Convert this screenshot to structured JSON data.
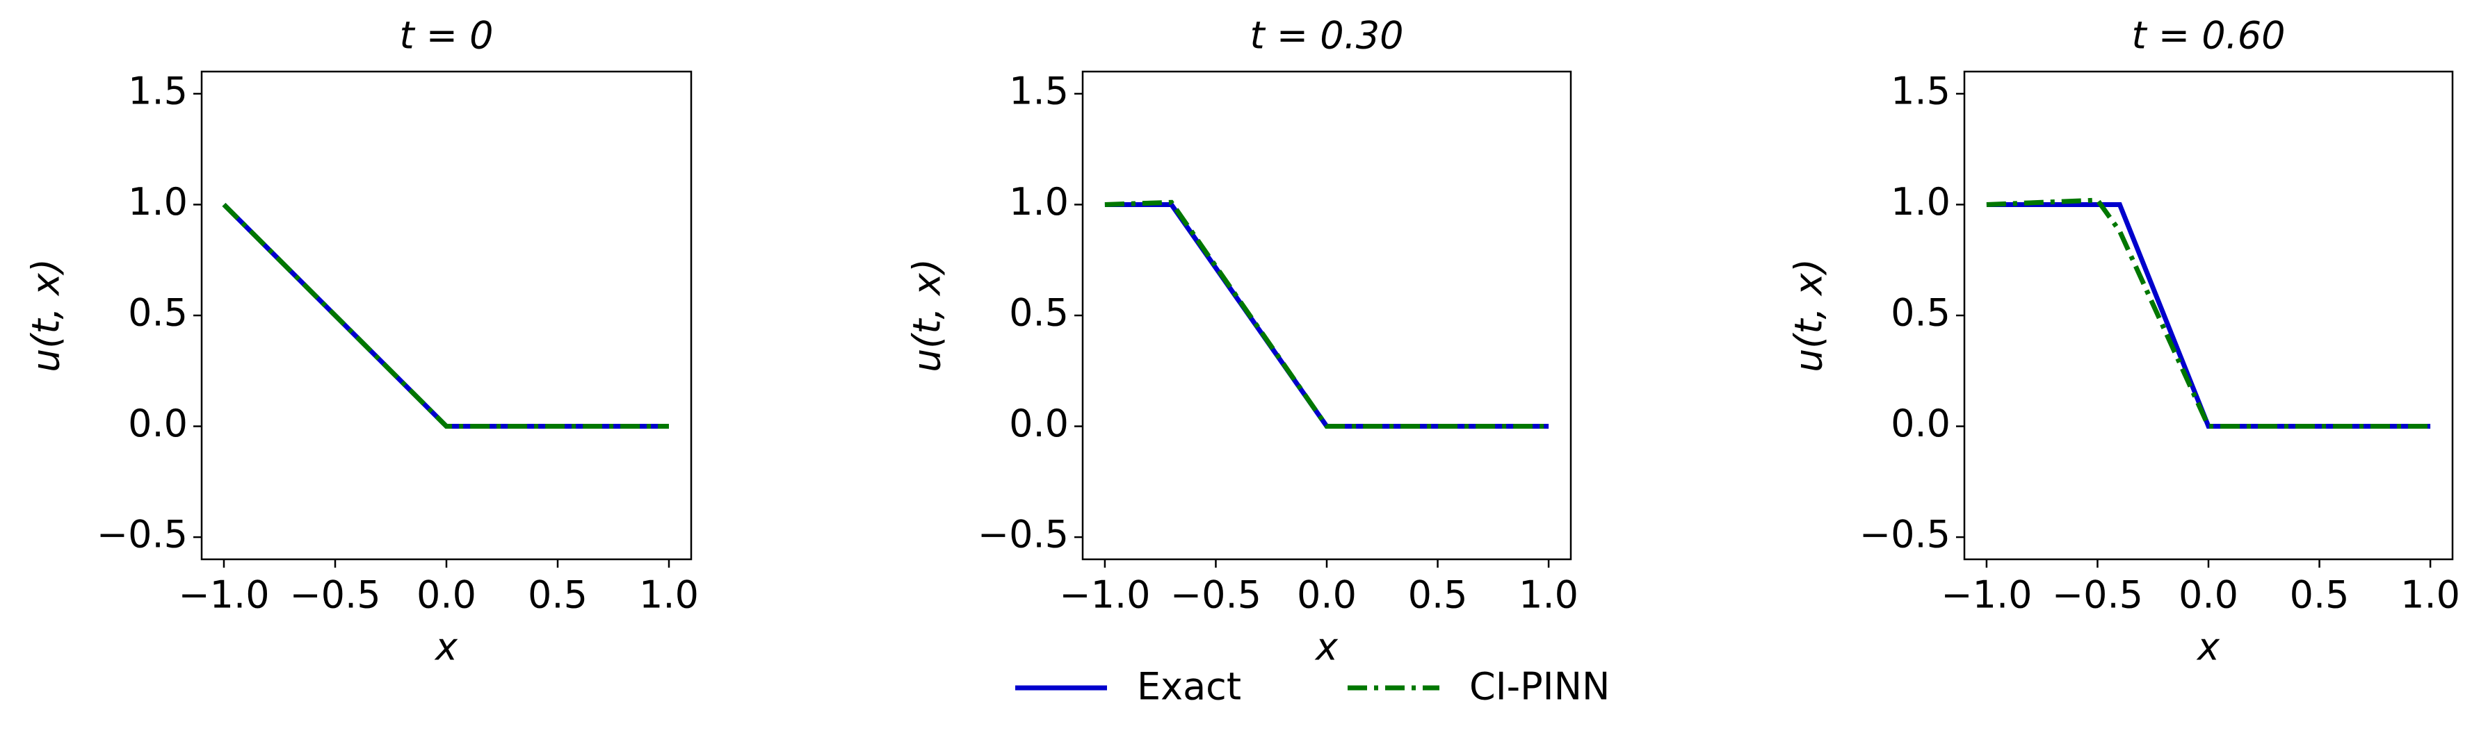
{
  "chart_data": [
    {
      "type": "line",
      "title": "t = 0",
      "xlabel": "x",
      "ylabel": "u(t, x)",
      "x": [
        -1,
        0,
        1
      ],
      "series": [
        {
          "name": "Exact",
          "color": "#0000cc",
          "linestyle": "solid",
          "values": [
            1,
            0,
            0
          ]
        },
        {
          "name": "CI-PINN",
          "color": "#007700",
          "linestyle": "dashdot",
          "values": [
            1,
            0,
            0
          ]
        }
      ],
      "xlim": [
        -1.1,
        1.1
      ],
      "ylim": [
        -0.6,
        1.6
      ],
      "xticks": [
        {
          "value": -1,
          "label": "−1.0"
        },
        {
          "value": -0.5,
          "label": "−0.5"
        },
        {
          "value": 0,
          "label": "0.0"
        },
        0.5,
        {
          "value": 1,
          "label": "1.0"
        }
      ],
      "yticks": [
        {
          "value": -0.5,
          "label": "−0.5"
        },
        {
          "value": 0,
          "label": "0.0"
        },
        0.5,
        {
          "value": 1,
          "label": "1.0"
        },
        1.5
      ]
    },
    {
      "type": "line",
      "title": "t = 0.30",
      "xlabel": "x",
      "ylabel": "u(t, x)",
      "x": [
        -1,
        -0.7,
        0,
        1
      ],
      "series": [
        {
          "color": "#0000cc",
          "linestyle": "solid",
          "values": [
            1,
            1,
            0,
            0
          ]
        },
        {
          "color": "#007700",
          "linestyle": "dashdot",
          "values": [
            1,
            1.01,
            0,
            0
          ]
        }
      ],
      "xlim": [
        -1.1,
        1.1
      ],
      "ylim": [
        -0.6,
        1.6
      ],
      "xticks": [
        {
          "value": -1,
          "label": "−1.0"
        },
        {
          "value": -0.5,
          "label": "−0.5"
        },
        {
          "value": 0,
          "label": "0.0"
        },
        0.5,
        {
          "value": 1,
          "label": "1.0"
        }
      ],
      "yticks": [
        {
          "value": -0.5,
          "label": "−0.5"
        },
        {
          "value": 0,
          "label": "0.0"
        },
        0.5,
        {
          "value": 1,
          "label": "1.0"
        },
        1.5
      ]
    },
    {
      "type": "line",
      "title": "t = 0.60",
      "xlabel": "x",
      "ylabel": "u(t, x)",
      "x": [
        -1,
        -0.5,
        -0.4,
        0,
        1
      ],
      "series": [
        {
          "color": "#0000cc",
          "linestyle": "solid",
          "values": [
            1,
            1,
            1,
            0,
            0
          ]
        },
        {
          "color": "#007700",
          "linestyle": "dashdot",
          "values": [
            1,
            1.02,
            0.88,
            0,
            0
          ]
        }
      ],
      "xlim": [
        -1.1,
        1.1
      ],
      "ylim": [
        -0.6,
        1.6
      ],
      "xticks": [
        {
          "value": -1,
          "label": "−1.0"
        },
        {
          "value": -0.5,
          "label": "−0.5"
        },
        {
          "value": 0,
          "label": "0.0"
        },
        0.5,
        {
          "value": 1,
          "label": "1.0"
        }
      ],
      "yticks": [
        {
          "value": -0.5,
          "label": "−0.5"
        },
        {
          "value": 0,
          "label": "0.0"
        },
        0.5,
        {
          "value": 1,
          "label": "1.0"
        },
        1.5
      ]
    }
  ]
}
